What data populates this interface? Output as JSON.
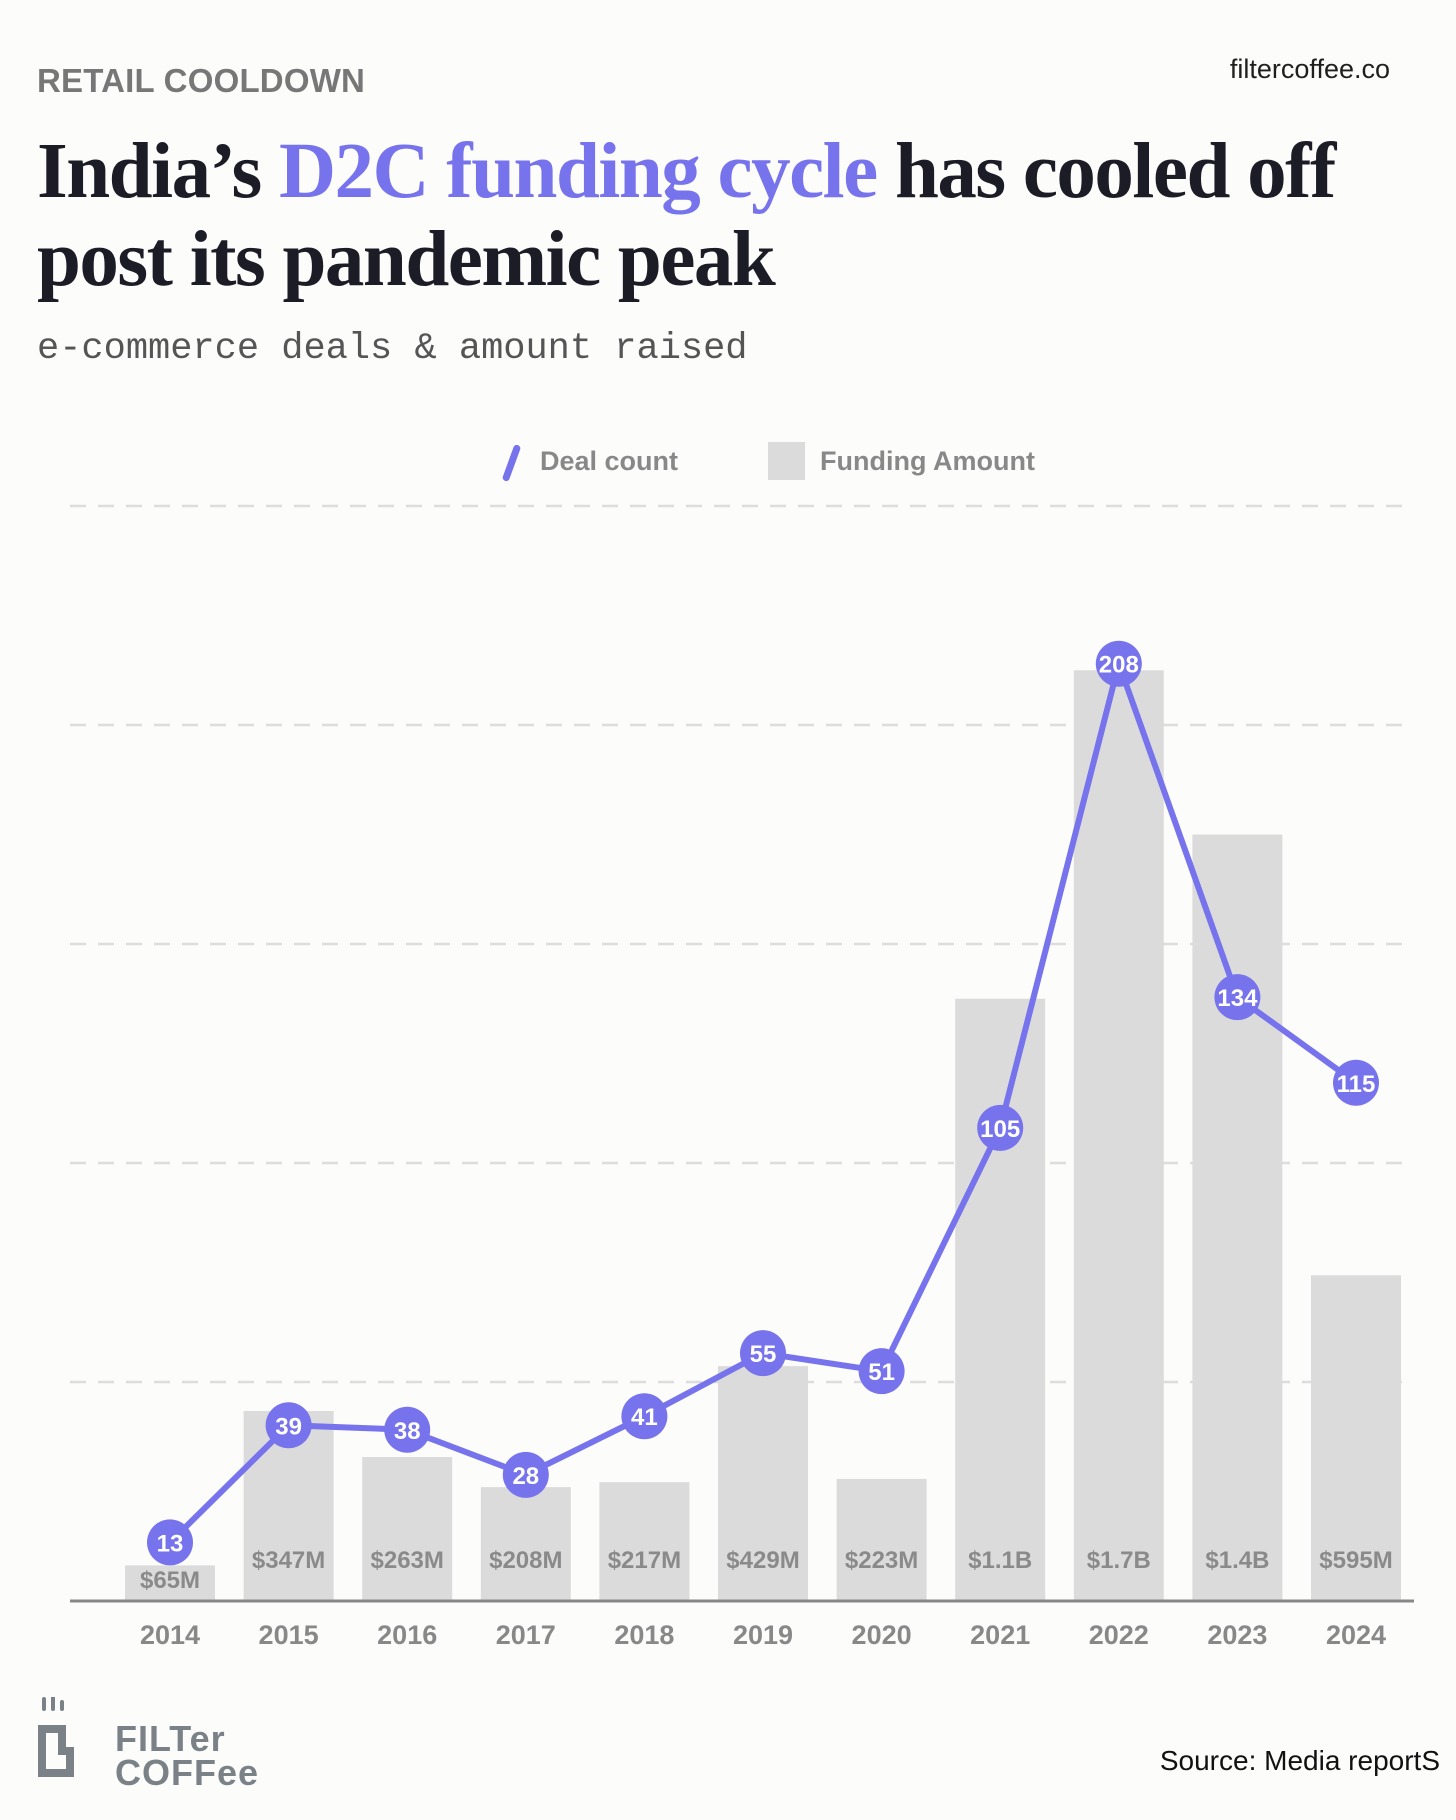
{
  "header": {
    "kicker": "RETAIL COOLDOWN",
    "site": "filtercoffee.co",
    "title_pre": "India’s ",
    "title_highlight": "D2C funding cycle",
    "title_post": " has cooled off post its pandemic peak",
    "subtitle": "e-commerce deals & amount raised"
  },
  "colors": {
    "accent": "#7673ec",
    "bar": "#dcdbdb",
    "text_muted": "#888888",
    "background": "#fcfcfb"
  },
  "chart_data": {
    "type": "bar+line",
    "categories": [
      "2014",
      "2015",
      "2016",
      "2017",
      "2018",
      "2019",
      "2020",
      "2021",
      "2022",
      "2023",
      "2024"
    ],
    "series": [
      {
        "name": "Deal count",
        "type": "line",
        "values": [
          13,
          39,
          38,
          28,
          41,
          55,
          51,
          105,
          208,
          134,
          115
        ],
        "labels": [
          "13",
          "39",
          "38",
          "28",
          "41",
          "55",
          "51",
          "105",
          "208",
          "134",
          "115"
        ]
      },
      {
        "name": "Funding Amount",
        "type": "bar",
        "values_usd_millions": [
          65,
          347,
          263,
          208,
          217,
          429,
          223,
          1100,
          1700,
          1400,
          595
        ],
        "labels": [
          "$65M",
          "$347M",
          "$263M",
          "$208M",
          "$217M",
          "$429M",
          "$223M",
          "$1.1B",
          "$1.7B",
          "$1.4B",
          "$595M"
        ]
      }
    ],
    "ylim_funding_usd_millions": [
      0,
      2000
    ],
    "ylim_deals": [
      0,
      243
    ],
    "grid": "horizontal dashed",
    "legend_position": "top-center",
    "legend": [
      "Deal count",
      "Funding Amount"
    ]
  },
  "footer": {
    "logo_line1": "FILTer",
    "logo_line2": "COFFee",
    "source": "Source: Media reportS"
  }
}
